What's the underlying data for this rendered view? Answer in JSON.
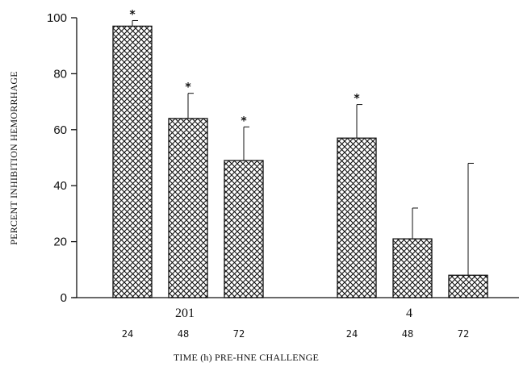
{
  "chart_data": {
    "type": "bar",
    "ylabel": "PERCENT INHIBITION HEMORRHAGE",
    "xlabel": "TIME (h) PRE-HNE CHALLENGE",
    "ylim": [
      0,
      100
    ],
    "yticks": [
      "0",
      "20",
      "40",
      "60",
      "80",
      "100"
    ],
    "groups": [
      {
        "name": "201",
        "bars": [
          {
            "time": "24",
            "value": 97,
            "error": 2,
            "significant": true
          },
          {
            "time": "48",
            "value": 64,
            "error": 9,
            "significant": true
          },
          {
            "time": "72",
            "value": 49,
            "error": 12,
            "significant": true
          }
        ]
      },
      {
        "name": "4",
        "bars": [
          {
            "time": "24",
            "value": 57,
            "error": 12,
            "significant": true
          },
          {
            "time": "48",
            "value": 21,
            "error": 11,
            "significant": false
          },
          {
            "time": "72",
            "value": 8,
            "error": 40,
            "significant": false
          }
        ]
      }
    ],
    "significance_marker": "*",
    "bar_pattern": "crosshatch",
    "grid": false,
    "legend": "none"
  }
}
